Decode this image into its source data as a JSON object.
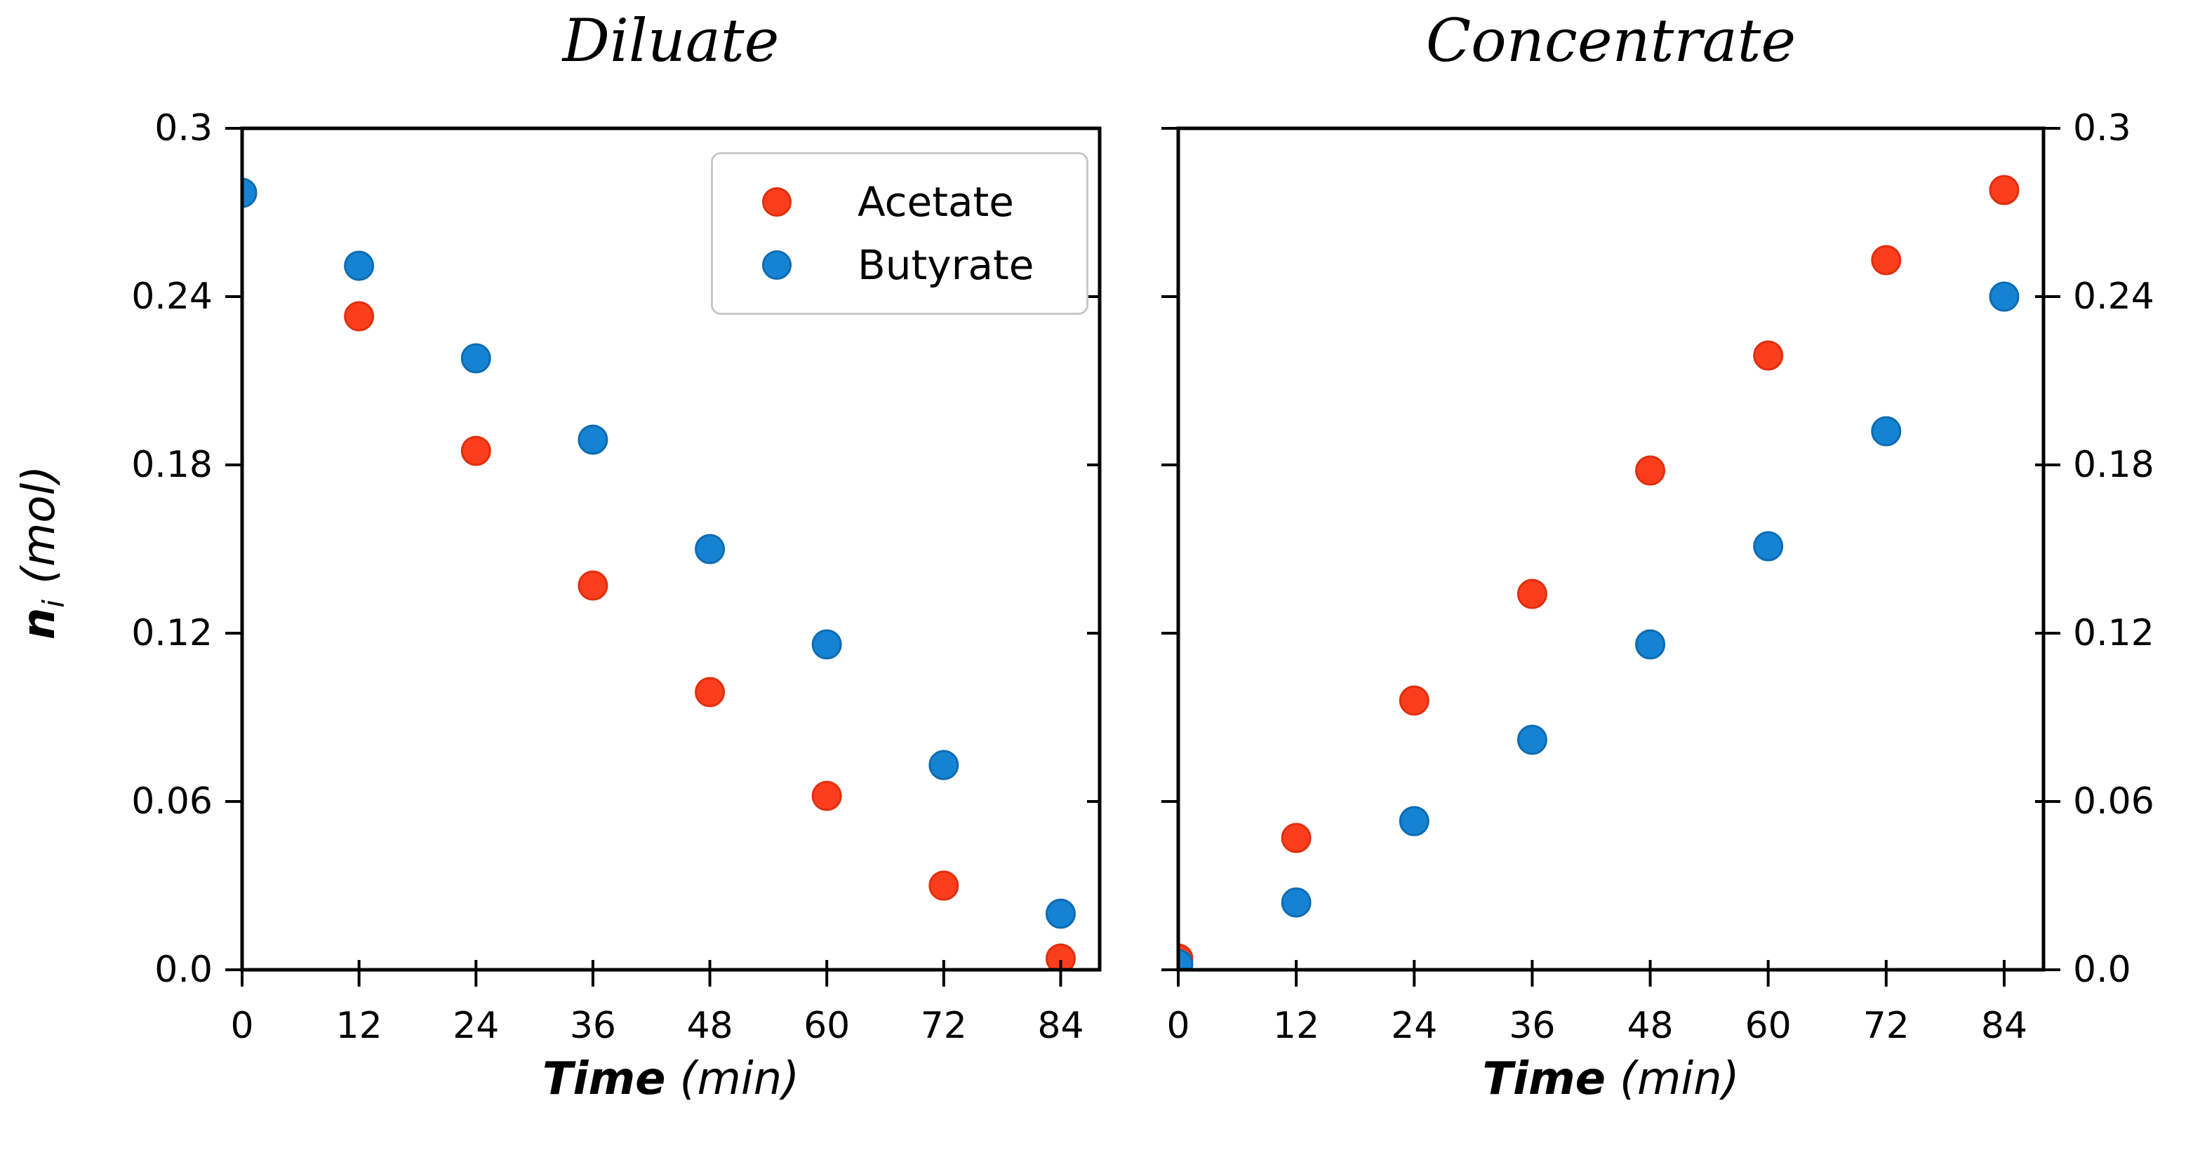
{
  "figure": {
    "background": "#ffffff"
  },
  "styles": {
    "acetate": {
      "fill": "#fa3e1d",
      "edge": "#e02f0e"
    },
    "butyrate": {
      "fill": "#1583d2",
      "edge": "#0d6cb2"
    },
    "axis_color": "#000000",
    "legend_border": "#c9c9c9"
  },
  "axis_labels": {
    "x_bold": "Time",
    "x_unit": "(min)",
    "y_symbol": "n",
    "y_sub": "i",
    "y_unit": "(mol)"
  },
  "legend": {
    "items": [
      {
        "label": "Acetate",
        "color_key": "acetate"
      },
      {
        "label": "Butyrate",
        "color_key": "butyrate"
      }
    ]
  },
  "chart_data": [
    {
      "type": "scatter",
      "title": "Diluate",
      "xlabel": "Time (min)",
      "ylabel": "n_i (mol)",
      "x": [
        0,
        12,
        24,
        36,
        48,
        60,
        72,
        84
      ],
      "series": [
        {
          "name": "Acetate",
          "values": [
            0.277,
            0.233,
            0.185,
            0.137,
            0.099,
            0.062,
            0.03,
            0.004
          ]
        },
        {
          "name": "Butyrate",
          "values": [
            0.277,
            0.251,
            0.218,
            0.189,
            0.15,
            0.116,
            0.073,
            0.02
          ]
        }
      ],
      "xlim": [
        0,
        88
      ],
      "ylim": [
        0,
        0.3
      ],
      "xticks": [
        {
          "v": 0,
          "label": "0"
        },
        {
          "v": 12,
          "label": "12"
        },
        {
          "v": 24,
          "label": "24"
        },
        {
          "v": 36,
          "label": "36"
        },
        {
          "v": 48,
          "label": "48"
        },
        {
          "v": 60,
          "label": "60"
        },
        {
          "v": 72,
          "label": "72"
        },
        {
          "v": 84,
          "label": "84"
        }
      ],
      "yticks": [
        {
          "v": 0,
          "label": "0.0"
        },
        {
          "v": 0.06,
          "label": "0.06"
        },
        {
          "v": 0.12,
          "label": "0.12"
        },
        {
          "v": 0.18,
          "label": "0.18"
        },
        {
          "v": 0.24,
          "label": "0.24"
        },
        {
          "v": 0.3,
          "label": "0.3"
        }
      ],
      "ytick_label_side": "left",
      "grid": false,
      "legend_position": "upper right",
      "note": "Acetate point at t=0 is occluded by Butyrate point"
    },
    {
      "type": "scatter",
      "title": "Concentrate",
      "xlabel": "Time (min)",
      "ylabel": "n_i (mol)",
      "x": [
        0,
        12,
        24,
        36,
        48,
        60,
        72,
        84
      ],
      "series": [
        {
          "name": "Acetate",
          "values": [
            0.004,
            0.047,
            0.096,
            0.134,
            0.178,
            0.219,
            0.253,
            0.278
          ]
        },
        {
          "name": "Butyrate",
          "values": [
            0.002,
            0.024,
            0.053,
            0.082,
            0.116,
            0.151,
            0.192,
            0.24
          ]
        }
      ],
      "xlim": [
        0,
        88
      ],
      "ylim": [
        0,
        0.3
      ],
      "xticks": [
        {
          "v": 0,
          "label": "0"
        },
        {
          "v": 12,
          "label": "12"
        },
        {
          "v": 24,
          "label": "24"
        },
        {
          "v": 36,
          "label": "36"
        },
        {
          "v": 48,
          "label": "48"
        },
        {
          "v": 60,
          "label": "60"
        },
        {
          "v": 72,
          "label": "72"
        },
        {
          "v": 84,
          "label": "84"
        }
      ],
      "yticks": [
        {
          "v": 0,
          "label": "0.0"
        },
        {
          "v": 0.06,
          "label": "0.06"
        },
        {
          "v": 0.12,
          "label": "0.12"
        },
        {
          "v": 0.18,
          "label": "0.18"
        },
        {
          "v": 0.24,
          "label": "0.24"
        },
        {
          "v": 0.3,
          "label": "0.3"
        }
      ],
      "ytick_label_side": "right",
      "grid": false,
      "legend_position": "none"
    }
  ]
}
